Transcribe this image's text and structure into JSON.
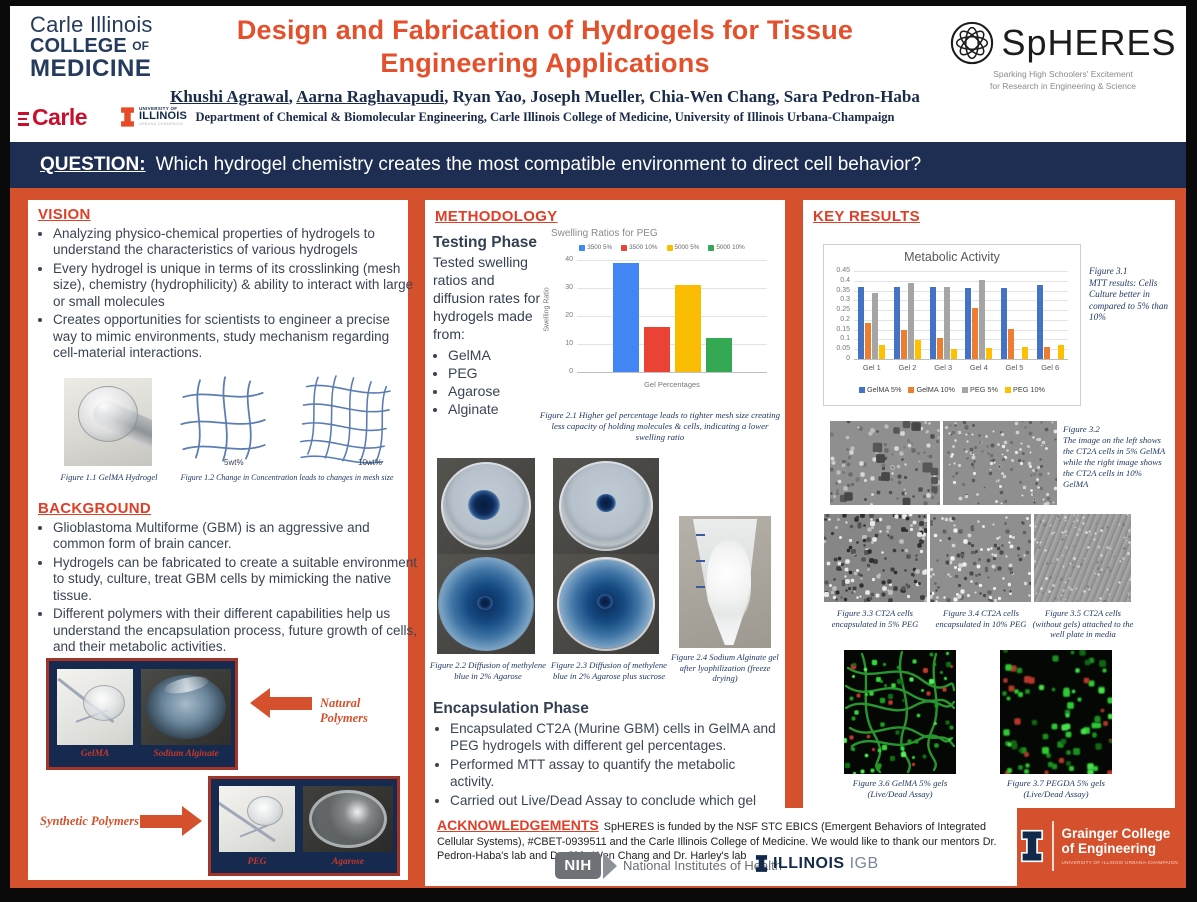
{
  "colors": {
    "body_orange": "#d5512d",
    "title_orange": "#e4502c",
    "navy": "#1e2d52",
    "section_red": "#e03e26",
    "caption_navy": "#1f3864",
    "box_border_red": "#a3342a"
  },
  "header": {
    "college_logo": {
      "line1": "Carle Illinois",
      "line2_main": "COLLEGE",
      "line2_small": "OF",
      "line3": "MEDICINE"
    },
    "carle_wordmark": "Carle",
    "illinois_wordmark": {
      "line1": "UNIVERSITY OF",
      "line2": "ILLINOIS",
      "line3": "URBANA-CHAMPAIGN"
    },
    "title_line1": "Design and Fabrication of Hydrogels for Tissue",
    "title_line2": "Engineering Applications",
    "authors": [
      {
        "name": "Khushi Agrawal",
        "underline": true
      },
      {
        "name": "Aarna Raghavapudi",
        "underline": true
      },
      {
        "name": "Ryan Yao",
        "underline": false
      },
      {
        "name": "Joseph Mueller",
        "underline": false
      },
      {
        "name": "Chia-Wen Chang",
        "underline": false
      },
      {
        "name": "Sara Pedron-Haba",
        "underline": false
      }
    ],
    "department": "Department of Chemical & Biomolecular Engineering, Carle Illinois College of Medicine, University of Illinois Urbana-Champaign",
    "spheres": {
      "name": "SpHERES",
      "tagline_line1": "Sparking High Schoolers' Excitement",
      "tagline_line2": "for Research in Engineering & Science"
    }
  },
  "question_bar": {
    "label": "QUESTION:",
    "text": "Which hydrogel chemistry creates the most compatible environment to direct cell behavior?"
  },
  "vision": {
    "heading": "VISION",
    "bullets": [
      "Analyzing physico-chemical properties of hydrogels to understand the characteristics of various hydrogels",
      "Every hydrogel is unique in terms of its crosslinking (mesh size), chemistry (hydrophilicity) & ability to interact with large or small molecules",
      "Creates opportunities for scientists to engineer a precise way to mimic environments, study mechanism regarding cell-material interactions."
    ],
    "fig11_caption": "Figure 1.1 GelMA Hydrogel",
    "fig12_caption": "Figure 1.2 Change in Concentration leads to changes in mesh size",
    "mesh_label_low": "5wt%",
    "mesh_label_high": "10wt%"
  },
  "background": {
    "heading": "BACKGROUND",
    "bullets": [
      "Glioblastoma Multiforme (GBM) is an aggressive and common form of brain cancer.",
      "Hydrogels can be fabricated to create a suitable environment to study, culture, treat GBM cells by mimicking the native tissue.",
      "Different polymers with their different capabilities help us understand the encapsulation process, future growth of cells, and their metabolic activities."
    ],
    "natural_label": "Natural Polymers",
    "synthetic_label": "Synthetic Polymers",
    "natural_images": {
      "img1": "GelMA",
      "img2": "Sodium Alginate"
    },
    "synthetic_images": {
      "img1": "PEG",
      "img2": "Agarose"
    }
  },
  "methodology": {
    "heading": "METHODOLOGY",
    "testing_heading": "Testing Phase",
    "testing_intro": "Tested swelling ratios and diffusion rates for hydrogels made from:",
    "testing_bullets": [
      "GelMA",
      "PEG",
      "Agarose",
      "Alginate"
    ],
    "fig21_caption": "Figure 2.1 Higher gel percentage leads to tighter mesh size creating less capacity of holding molecules & cells, indicating a lower swelling ratio",
    "fig22_caption": "Figure 2.2 Diffusion of methylene blue in 2% Agarose",
    "fig23_caption": "Figure 2.3 Diffusion of methylene blue in 2% Agarose plus sucrose",
    "fig24_caption": "Figure 2.4 Sodium Alginate gel after lyophilization (freeze drying)",
    "encapsulation_heading": "Encapsulation Phase",
    "encapsulation_bullets": [
      "Encapsulated CT2A (Murine GBM) cells in GelMA and PEG hydrogels with different gel percentages.",
      "Performed MTT assay to quantify the metabolic activity.",
      "Carried out Live/Dead Assay to conclude which gel conditions are ideal to visualize cell viability."
    ]
  },
  "key_results": {
    "heading": "KEY RESULTS",
    "fig31_line1": "Figure 3.1",
    "fig31_rest": "MTT results: Cells Culture better in compared to 5% than 10%",
    "fig32_line1": "Figure 3.2",
    "fig32_rest": "The image on the left shows the CT2A cells in 5% GelMA while the right image shows the CT2A cells in 10% GelMA",
    "fig33_caption": "Figure 3.3 CT2A cells encapsulated in 5% PEG",
    "fig34_caption": "Figure 3.4 CT2A cells encapsulated in 10% PEG",
    "fig35_caption": "Figure 3.5 CT2A cells (without gels) attached to the well plate in media",
    "fig36_caption": "Figure 3.6 GelMA 5% gels (Live/Dead Assay)",
    "fig37_caption": "Figure 3.7 PEGDA 5% gels (Live/Dead Assay)"
  },
  "chart_data": [
    {
      "type": "bar",
      "title": "Swelling Ratios for PEG",
      "xlabel": "Gel Percentages",
      "ylabel": "Swelling Ratio",
      "ylim": [
        0,
        40
      ],
      "yticks": [
        0,
        10,
        20,
        30,
        40
      ],
      "grid": true,
      "legend_position": "top",
      "series": [
        {
          "name": "3500 5%",
          "color": "#4285F4",
          "value": 39
        },
        {
          "name": "3500 10%",
          "color": "#EA4335",
          "value": 16
        },
        {
          "name": "5000 5%",
          "color": "#FBBC04",
          "value": 31
        },
        {
          "name": "5000 10%",
          "color": "#34A853",
          "value": 12
        }
      ]
    },
    {
      "type": "bar",
      "title": "Metabolic Activity",
      "xlabel": "",
      "ylabel": "",
      "ylim": [
        0,
        0.45
      ],
      "yticks": [
        0,
        0.05,
        0.1,
        0.15,
        0.2,
        0.25,
        0.3,
        0.35,
        0.4,
        0.45
      ],
      "grid": true,
      "legend_position": "bottom",
      "categories": [
        "Gel 1",
        "Gel 2",
        "Gel 3",
        "Gel 4",
        "Gel 5",
        "Gel 6"
      ],
      "series": [
        {
          "name": "GelMA 5%",
          "color": "#4472C4",
          "values": [
            0.37,
            0.37,
            0.37,
            0.365,
            0.365,
            0.38
          ]
        },
        {
          "name": "GelMA 10%",
          "color": "#ED7D31",
          "values": [
            0.185,
            0.15,
            0.105,
            0.26,
            0.155,
            0.06
          ]
        },
        {
          "name": "PEG 5%",
          "color": "#A5A5A5",
          "values": [
            0.34,
            0.39,
            0.37,
            0.405,
            null,
            null
          ]
        },
        {
          "name": "PEG 10%",
          "color": "#FFC000",
          "values": [
            0.07,
            0.095,
            0.05,
            0.055,
            0.06,
            0.07
          ]
        }
      ]
    }
  ],
  "acknowledgements": {
    "heading": "ACKNOWLEDGEMENTS",
    "text": "SpHERES is funded by the NSF STC EBICS (Emergent Behaviors of Integrated Cellular Systems), #CBET-0939511 and the Carle Illinois College of Medicine. We would like to thank our mentors Dr. Pedron-Haba's lab and Dr. Chia-Wen Chang and Dr. Harley's lab",
    "nih_abbr": "NIH",
    "nih_label": "National Institutes of Health",
    "igb_illinois": "ILLINOIS",
    "igb_suffix": "IGB",
    "grainger_line1": "Grainger College",
    "grainger_line2": "of Engineering",
    "grainger_subline": "UNIVERSITY OF ILLINOIS URBANA-CHAMPAIGN"
  }
}
